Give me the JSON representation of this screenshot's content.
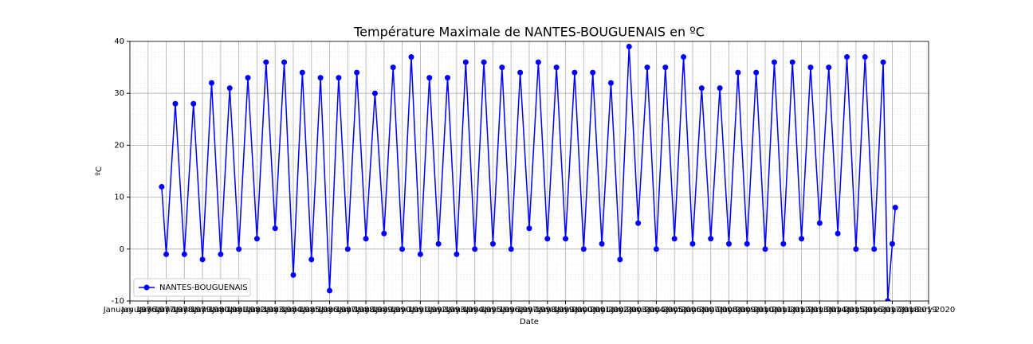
{
  "chart_data": {
    "type": "line",
    "title": "Température Maximale de NANTES-BOUGUENAIS en ºC",
    "xlabel": "Date",
    "ylabel": "ºC",
    "x": [
      "1977-10",
      "1978-01",
      "1978-07",
      "1979-01",
      "1979-07",
      "1980-01",
      "1980-07",
      "1981-01",
      "1981-07",
      "1982-01",
      "1982-07",
      "1983-01",
      "1983-07",
      "1984-01",
      "1984-07",
      "1985-01",
      "1985-07",
      "1986-01",
      "1986-07",
      "1987-01",
      "1987-07",
      "1988-01",
      "1988-07",
      "1989-01",
      "1989-07",
      "1990-01",
      "1990-07",
      "1991-01",
      "1991-07",
      "1992-01",
      "1992-07",
      "1993-01",
      "1993-07",
      "1994-01",
      "1994-07",
      "1995-01",
      "1995-07",
      "1996-01",
      "1996-07",
      "1997-01",
      "1997-07",
      "1998-01",
      "1998-07",
      "1999-01",
      "1999-07",
      "2000-01",
      "2000-07",
      "2001-01",
      "2001-07",
      "2002-01",
      "2002-07",
      "2003-01",
      "2003-07",
      "2004-01",
      "2004-07",
      "2005-01",
      "2005-07",
      "2006-01",
      "2006-07",
      "2007-01",
      "2007-07",
      "2008-01",
      "2008-07",
      "2009-01",
      "2009-07",
      "2010-01",
      "2010-07",
      "2011-01",
      "2011-07",
      "2012-01",
      "2012-07",
      "2013-01",
      "2013-07",
      "2014-01",
      "2014-07",
      "2015-01",
      "2015-07",
      "2016-01",
      "2016-07",
      "2017-01",
      "2017-07",
      "2017-10",
      "2018-01",
      "2018-03"
    ],
    "series": [
      {
        "name": "NANTES-BOUGUENAIS",
        "color": "#0000ff",
        "values": [
          12,
          -1,
          28,
          -1,
          28,
          -2,
          32,
          -1,
          31,
          0,
          33,
          2,
          36,
          4,
          36,
          -5,
          34,
          -2,
          33,
          -8,
          33,
          0,
          34,
          2,
          30,
          3,
          35,
          0,
          37,
          -1,
          33,
          1,
          33,
          -1,
          36,
          0,
          36,
          1,
          35,
          0,
          34,
          4,
          36,
          2,
          35,
          2,
          34,
          0,
          34,
          1,
          32,
          -2,
          39,
          5,
          35,
          0,
          35,
          2,
          37,
          1,
          31,
          2,
          31,
          1,
          34,
          1,
          34,
          0,
          36,
          1,
          36,
          2,
          35,
          5,
          35,
          3,
          37,
          0,
          37,
          0,
          36,
          -10,
          1,
          8
        ]
      }
    ],
    "xlim": [
      "1976-01",
      "2020-01"
    ],
    "xticks": [
      {
        "value": "1976-01",
        "label": "January 1976"
      },
      {
        "value": "1977-01",
        "label": "January 1977"
      },
      {
        "value": "1978-01",
        "label": "January 1978"
      },
      {
        "value": "1979-01",
        "label": "January 1979"
      },
      {
        "value": "1980-01",
        "label": "January 1980"
      },
      {
        "value": "1981-01",
        "label": "January 1981"
      },
      {
        "value": "1982-01",
        "label": "January 1982"
      },
      {
        "value": "1983-01",
        "label": "January 1983"
      },
      {
        "value": "1984-01",
        "label": "January 1984"
      },
      {
        "value": "1985-01",
        "label": "January 1985"
      },
      {
        "value": "1986-01",
        "label": "January 1986"
      },
      {
        "value": "1987-01",
        "label": "January 1987"
      },
      {
        "value": "1988-01",
        "label": "January 1988"
      },
      {
        "value": "1989-01",
        "label": "January 1989"
      },
      {
        "value": "1990-01",
        "label": "January 1990"
      },
      {
        "value": "1991-01",
        "label": "January 1991"
      },
      {
        "value": "1992-01",
        "label": "January 1992"
      },
      {
        "value": "1993-01",
        "label": "January 1993"
      },
      {
        "value": "1994-01",
        "label": "January 1994"
      },
      {
        "value": "1995-01",
        "label": "January 1995"
      },
      {
        "value": "1996-01",
        "label": "January 1996"
      },
      {
        "value": "1997-01",
        "label": "January 1997"
      },
      {
        "value": "1998-01",
        "label": "January 1998"
      },
      {
        "value": "1999-01",
        "label": "January 1999"
      },
      {
        "value": "2000-01",
        "label": "January 2000"
      },
      {
        "value": "2001-01",
        "label": "January 2001"
      },
      {
        "value": "2002-01",
        "label": "January 2002"
      },
      {
        "value": "2003-01",
        "label": "January 2003"
      },
      {
        "value": "2004-01",
        "label": "January 2004"
      },
      {
        "value": "2005-01",
        "label": "January 2005"
      },
      {
        "value": "2006-01",
        "label": "January 2006"
      },
      {
        "value": "2007-01",
        "label": "January 2007"
      },
      {
        "value": "2008-01",
        "label": "January 2008"
      },
      {
        "value": "2009-01",
        "label": "January 2009"
      },
      {
        "value": "2010-01",
        "label": "January 2010"
      },
      {
        "value": "2011-01",
        "label": "January 2011"
      },
      {
        "value": "2012-01",
        "label": "January 2012"
      },
      {
        "value": "2013-01",
        "label": "January 2013"
      },
      {
        "value": "2014-01",
        "label": "January 2014"
      },
      {
        "value": "2015-01",
        "label": "January 2015"
      },
      {
        "value": "2016-01",
        "label": "January 2016"
      },
      {
        "value": "2017-01",
        "label": "January 2017"
      },
      {
        "value": "2018-01",
        "label": "January 2018"
      },
      {
        "value": "2019-01",
        "label": "January 2019"
      },
      {
        "value": "2020-01",
        "label": "January 2020"
      }
    ],
    "ylim": [
      -10,
      40
    ],
    "yticks": [
      -10,
      0,
      10,
      20,
      30,
      40
    ],
    "grid": true,
    "legend": "lower left"
  }
}
